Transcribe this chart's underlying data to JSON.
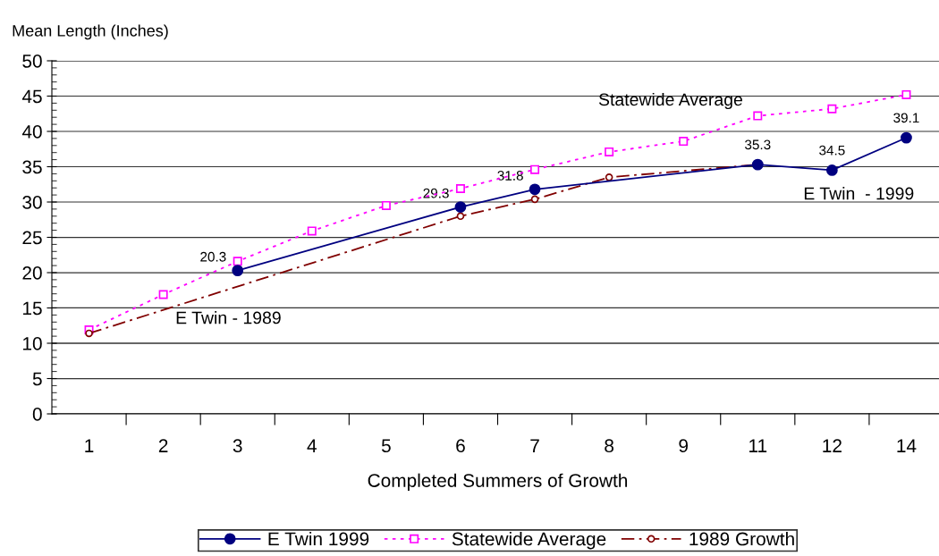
{
  "chart_data": {
    "type": "line",
    "ylabel": "Mean Length (Inches)",
    "xlabel": "Completed Summers of Growth",
    "categories": [
      "1",
      "2",
      "3",
      "4",
      "5",
      "6",
      "7",
      "8",
      "9",
      "11",
      "12",
      "14"
    ],
    "series": [
      {
        "name": "E Twin 1999",
        "color": "#000080",
        "marker": "circle",
        "line_style": "solid",
        "values": [
          null,
          null,
          20.3,
          null,
          null,
          29.3,
          31.8,
          null,
          null,
          35.3,
          34.5,
          39.1
        ],
        "value_labels": [
          null,
          null,
          "20.3",
          null,
          null,
          "29.3",
          "31.8",
          null,
          null,
          "35.3",
          "34.5",
          "39.1"
        ]
      },
      {
        "name": "Statewide Average",
        "color": "#ff00ff",
        "marker": "square",
        "line_style": "dotted",
        "values": [
          11.9,
          16.9,
          21.6,
          25.9,
          29.5,
          31.9,
          34.6,
          37.1,
          38.6,
          42.2,
          43.2,
          45.2
        ]
      },
      {
        "name": "1989 Growth",
        "color": "#800000",
        "marker": "circle",
        "line_style": "dashdot",
        "values": [
          11.4,
          null,
          null,
          null,
          null,
          28.0,
          30.4,
          33.5,
          null,
          35.3,
          null,
          null
        ]
      }
    ],
    "ylim": [
      0,
      50
    ],
    "yticks": [
      0,
      5,
      10,
      15,
      20,
      25,
      30,
      35,
      40,
      45,
      50
    ],
    "grid": "y",
    "legend": "bottom",
    "annotations": [
      "Statewide Average",
      "E Twin - 1989",
      "E Twin  - 1999"
    ]
  }
}
